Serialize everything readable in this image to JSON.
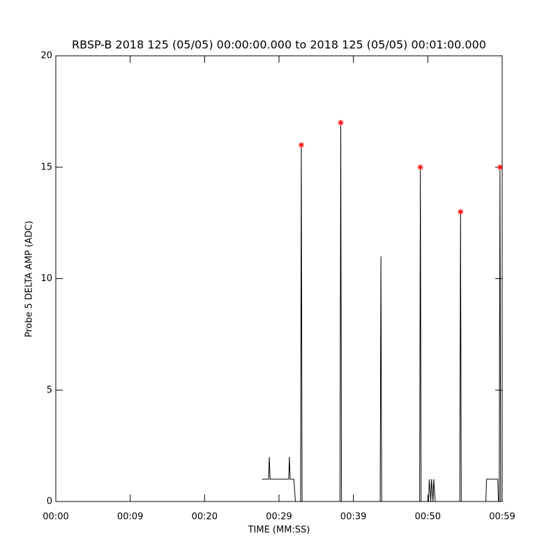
{
  "chart_data": {
    "type": "line",
    "title": "RBSP-B 2018 125 (05/05) 00:00:00.000 to 2018 125 (05/05) 00:01:00.000",
    "x_label": "TIME (MM:SS)",
    "y_label": "Probe 5 DELTA AMP (ADC)",
    "xlim": [
      0,
      60
    ],
    "ylim": [
      0,
      20
    ],
    "xticks": [
      {
        "value": 0,
        "label": "00:00"
      },
      {
        "value": 10,
        "label": "00:09"
      },
      {
        "value": 20,
        "label": "00:20"
      },
      {
        "value": 30,
        "label": "00:29"
      },
      {
        "value": 40,
        "label": "00:39"
      },
      {
        "value": 50,
        "label": "00:50"
      },
      {
        "value": 60,
        "label": "00:59"
      }
    ],
    "yticks": [
      0,
      5,
      10,
      15,
      20
    ],
    "grid": false,
    "series": [
      {
        "color": "#000000",
        "marker": "none",
        "x": [
          27.7,
          28.6,
          28.7,
          28.8,
          31.3,
          31.4,
          31.5,
          32.0,
          32.2,
          32.9,
          33.0,
          33.1,
          38.2,
          38.3,
          38.4,
          43.6,
          43.7,
          43.8,
          48.9,
          49.0,
          49.1,
          50.1,
          50.2,
          50.4,
          50.5,
          50.7,
          50.8,
          51.0,
          51.1,
          54.3,
          54.4,
          54.5,
          57.8,
          57.9,
          59.4,
          59.5,
          59.6,
          59.7,
          59.8
        ],
        "values": [
          1,
          1,
          2,
          1,
          1,
          2,
          1,
          1,
          0,
          0,
          16,
          0,
          0,
          17,
          0,
          0,
          11,
          0,
          0,
          15,
          0,
          0,
          1,
          0,
          1,
          0,
          1,
          0,
          0,
          0,
          13,
          0,
          0,
          1,
          1,
          0,
          0,
          15,
          0
        ]
      },
      {
        "color": "#ff0000",
        "marker": "asterisk",
        "x": [
          33.0,
          38.3,
          49.0,
          54.4,
          59.7
        ],
        "values": [
          16,
          17,
          15,
          13,
          15
        ]
      }
    ]
  }
}
